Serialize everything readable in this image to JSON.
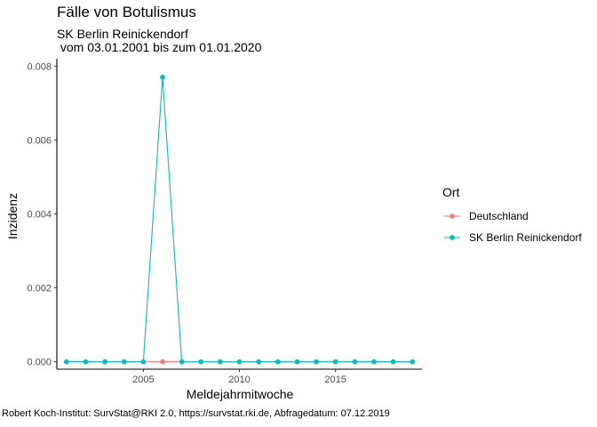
{
  "chart_data": {
    "type": "line",
    "title": "Fälle von Botulismus",
    "subtitle": "SK Berlin Reinickendorf\n vom 03.01.2001 bis zum 01.01.2020",
    "xlabel": "Meldejahrmitwoche",
    "ylabel": "Inzidenz",
    "caption": "Robert Koch-Institut: SurvStat@RKI 2.0, https://survstat.rki.de, Abfragedatum: 07.12.2019",
    "xlim": [
      2000.5,
      2019.5
    ],
    "ylim": [
      -0.0002,
      0.0082
    ],
    "x_ticks": [
      2005,
      2010,
      2015
    ],
    "x_tick_labels": [
      "2005",
      "2010",
      "2015"
    ],
    "y_ticks": [
      0.0,
      0.002,
      0.004,
      0.006,
      0.008
    ],
    "y_tick_labels": [
      "0.000",
      "0.002",
      "0.004",
      "0.006",
      "0.008"
    ],
    "grid": false,
    "legend": {
      "title": "Ort",
      "position": "right"
    },
    "x": [
      2001,
      2002,
      2003,
      2004,
      2005,
      2006,
      2007,
      2008,
      2009,
      2010,
      2011,
      2012,
      2013,
      2014,
      2015,
      2016,
      2017,
      2018,
      2019
    ],
    "series": [
      {
        "name": "Deutschland",
        "color": "#F8766D",
        "values": [
          0,
          0,
          0,
          0,
          0,
          0,
          0,
          0,
          0,
          0,
          0,
          0,
          0,
          0,
          0,
          0,
          0,
          0,
          0
        ]
      },
      {
        "name": "SK Berlin Reinickendorf",
        "color": "#00BFC4",
        "values": [
          0,
          0,
          0,
          0,
          0,
          0.0077,
          0,
          0,
          0,
          0,
          0,
          0,
          0,
          0,
          0,
          0,
          0,
          0,
          0
        ]
      }
    ]
  }
}
